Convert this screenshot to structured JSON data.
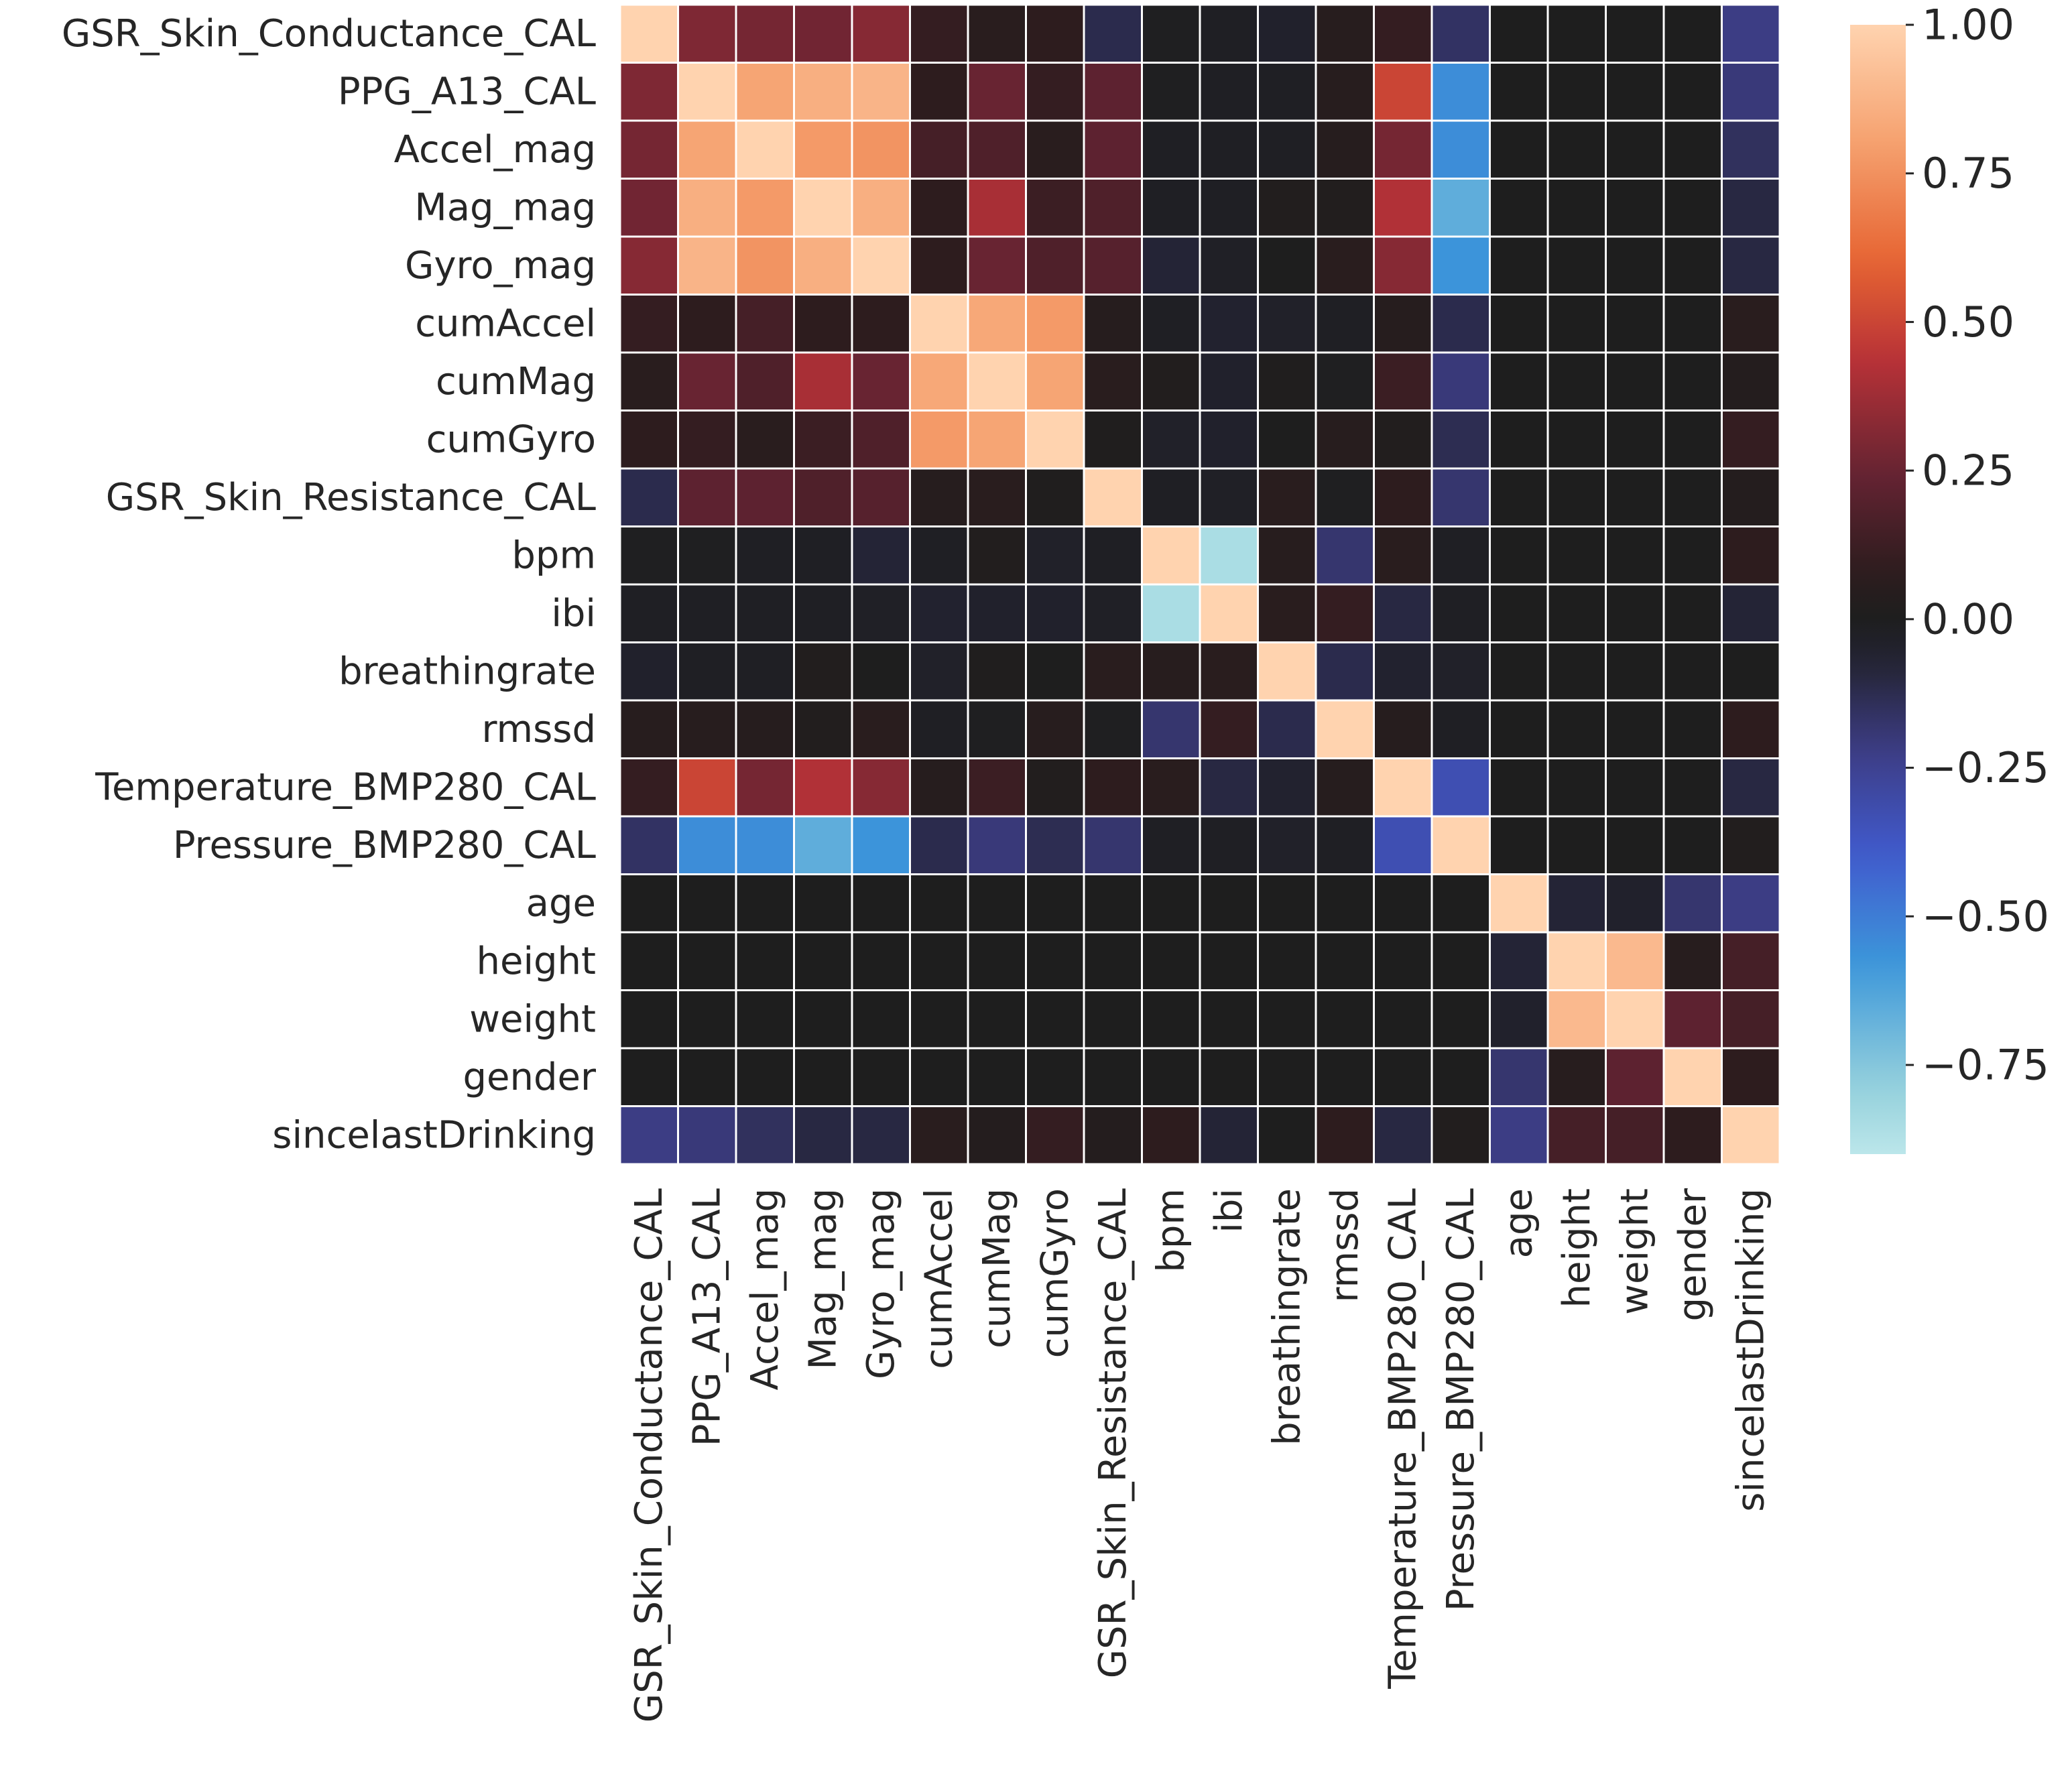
{
  "chart_data": {
    "type": "heatmap",
    "title": "",
    "xlabel": "",
    "ylabel": "",
    "labels": [
      "GSR_Skin_Conductance_CAL",
      "PPG_A13_CAL",
      "Accel_mag",
      "Mag_mag",
      "Gyro_mag",
      "cumAccel",
      "cumMag",
      "cumGyro",
      "GSR_Skin_Resistance_CAL",
      "bpm",
      "ibi",
      "breathingrate",
      "rmssd",
      "Temperature_BMP280_CAL",
      "Pressure_BMP280_CAL",
      "age",
      "height",
      "weight",
      "gender",
      "sincelastDrinking"
    ],
    "matrix": [
      [
        1.0,
        0.3,
        0.28,
        0.27,
        0.32,
        0.1,
        0.06,
        0.08,
        -0.12,
        -0.01,
        -0.02,
        -0.05,
        0.05,
        0.1,
        -0.16,
        0.0,
        0.0,
        0.0,
        0.0,
        -0.22
      ],
      [
        0.3,
        1.0,
        0.82,
        0.86,
        0.88,
        0.08,
        0.25,
        0.1,
        0.22,
        -0.01,
        -0.02,
        -0.02,
        0.05,
        0.5,
        -0.55,
        0.0,
        0.0,
        0.0,
        0.0,
        -0.2
      ],
      [
        0.28,
        0.82,
        1.0,
        0.78,
        0.76,
        0.15,
        0.18,
        0.06,
        0.22,
        -0.02,
        -0.02,
        -0.02,
        0.04,
        0.28,
        -0.55,
        0.0,
        0.0,
        0.0,
        0.0,
        -0.15
      ],
      [
        0.27,
        0.86,
        0.78,
        1.0,
        0.86,
        0.08,
        0.4,
        0.12,
        0.18,
        -0.02,
        -0.02,
        0.02,
        0.02,
        0.42,
        -0.66,
        0.0,
        0.0,
        0.0,
        0.0,
        -0.1
      ],
      [
        0.32,
        0.88,
        0.76,
        0.86,
        1.0,
        0.08,
        0.25,
        0.18,
        0.2,
        -0.08,
        -0.03,
        0.0,
        0.06,
        0.32,
        -0.57,
        0.0,
        0.0,
        0.0,
        0.0,
        -0.1
      ],
      [
        0.1,
        0.08,
        0.15,
        0.08,
        0.08,
        1.0,
        0.83,
        0.78,
        0.04,
        -0.02,
        -0.06,
        -0.04,
        -0.02,
        0.04,
        -0.12,
        0.0,
        0.0,
        0.0,
        0.0,
        0.06
      ],
      [
        0.06,
        0.25,
        0.18,
        0.4,
        0.25,
        0.83,
        1.0,
        0.82,
        0.06,
        0.02,
        -0.05,
        0.01,
        -0.01,
        0.12,
        -0.2,
        0.0,
        0.0,
        0.0,
        0.0,
        0.03
      ],
      [
        0.08,
        0.1,
        0.06,
        0.12,
        0.18,
        0.78,
        0.82,
        1.0,
        0.01,
        -0.04,
        -0.05,
        0.0,
        0.05,
        0.02,
        -0.13,
        0.0,
        0.0,
        0.0,
        0.0,
        0.1
      ],
      [
        -0.12,
        0.22,
        0.22,
        0.18,
        0.2,
        0.04,
        0.06,
        0.01,
        1.0,
        -0.02,
        -0.03,
        0.06,
        -0.01,
        0.08,
        -0.18,
        0.0,
        0.0,
        0.0,
        0.0,
        0.03
      ],
      [
        -0.01,
        -0.01,
        -0.02,
        -0.02,
        -0.08,
        -0.02,
        0.02,
        -0.04,
        -0.02,
        1.0,
        -0.85,
        0.05,
        -0.18,
        0.06,
        -0.02,
        0.0,
        0.0,
        0.0,
        0.0,
        0.08
      ],
      [
        -0.02,
        -0.02,
        -0.02,
        -0.02,
        -0.03,
        -0.06,
        -0.05,
        -0.05,
        -0.03,
        -0.85,
        1.0,
        0.06,
        0.1,
        -0.1,
        -0.02,
        0.0,
        0.0,
        0.0,
        0.0,
        -0.08
      ],
      [
        -0.05,
        -0.02,
        -0.02,
        0.02,
        0.0,
        -0.04,
        0.01,
        0.0,
        0.06,
        0.05,
        0.06,
        1.0,
        -0.12,
        -0.06,
        -0.04,
        0.0,
        0.0,
        0.0,
        0.0,
        0.0
      ],
      [
        0.05,
        0.05,
        0.04,
        0.02,
        0.06,
        -0.02,
        -0.01,
        0.05,
        -0.01,
        -0.18,
        0.1,
        -0.12,
        1.0,
        0.04,
        -0.02,
        0.0,
        0.0,
        0.0,
        0.0,
        0.08
      ],
      [
        0.1,
        0.5,
        0.28,
        0.42,
        0.32,
        0.04,
        0.12,
        0.02,
        0.08,
        0.06,
        -0.1,
        -0.06,
        0.04,
        1.0,
        -0.33,
        0.0,
        0.0,
        0.0,
        0.0,
        -0.1
      ],
      [
        -0.16,
        -0.55,
        -0.55,
        -0.66,
        -0.57,
        -0.12,
        -0.2,
        -0.13,
        -0.18,
        -0.02,
        -0.02,
        -0.04,
        -0.02,
        -0.33,
        1.0,
        0.0,
        0.0,
        0.0,
        0.0,
        0.02
      ],
      [
        0.0,
        0.0,
        0.0,
        0.0,
        0.0,
        0.0,
        0.0,
        0.0,
        0.0,
        0.0,
        0.0,
        0.0,
        0.0,
        0.0,
        0.0,
        1.0,
        -0.08,
        -0.05,
        -0.18,
        -0.22
      ],
      [
        0.0,
        0.0,
        0.0,
        0.0,
        0.0,
        0.0,
        0.0,
        0.0,
        0.0,
        0.0,
        0.0,
        0.0,
        0.0,
        0.0,
        0.0,
        -0.08,
        1.0,
        0.9,
        0.05,
        0.15
      ],
      [
        0.0,
        0.0,
        0.0,
        0.0,
        0.0,
        0.0,
        0.0,
        0.0,
        0.0,
        0.0,
        0.0,
        0.0,
        0.0,
        0.0,
        0.0,
        -0.05,
        0.9,
        1.0,
        0.22,
        0.15
      ],
      [
        0.0,
        0.0,
        0.0,
        0.0,
        0.0,
        0.0,
        0.0,
        0.0,
        0.0,
        0.0,
        0.0,
        0.0,
        0.0,
        0.0,
        0.0,
        -0.18,
        0.05,
        0.22,
        1.0,
        0.08
      ],
      [
        -0.22,
        -0.2,
        -0.15,
        -0.1,
        -0.1,
        0.06,
        0.03,
        0.1,
        0.03,
        0.08,
        -0.08,
        0.0,
        0.08,
        -0.1,
        0.02,
        -0.22,
        0.15,
        0.15,
        0.08,
        1.0
      ]
    ],
    "colormap": "icefire",
    "vmin": -0.9,
    "vmax": 1.0,
    "colorbar": {
      "ticks": [
        1.0,
        0.75,
        0.5,
        0.25,
        0.0,
        -0.25,
        -0.5,
        -0.75
      ],
      "tick_labels": [
        "1.00",
        "0.75",
        "0.50",
        "0.25",
        "0.00",
        "−0.25",
        "−0.50",
        "−0.75"
      ]
    },
    "grid_line_color": "#ffffff"
  }
}
